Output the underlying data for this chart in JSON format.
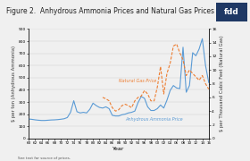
{
  "title": "Figure 2.  Anhydrous Ammonia Prices and Natural Gas Prices",
  "title_fontsize": 5.5,
  "xlabel": "Year",
  "ylabel_left": "$ per ton (Anhydrous Ammonia)",
  "ylabel_right": "$ per Thousand Cubic Feet (Natural Gas)",
  "xlabel_fontsize": 4.5,
  "ylabel_fontsize": 3.8,
  "footnote": "See text for source of prices.",
  "ammonia_color": "#5b9bd5",
  "natural_gas_color": "#ed7d31",
  "ylim_left": [
    0,
    900
  ],
  "ylim_right": [
    0,
    16
  ],
  "yticks_left": [
    0,
    100,
    200,
    300,
    400,
    500,
    600,
    700,
    800,
    900
  ],
  "yticks_right": [
    0,
    2,
    4,
    6,
    8,
    10,
    12,
    14,
    16
  ],
  "fdd_box_color": "#1f3864",
  "fdd_text_color": "#ffffff",
  "bg_color": "#f0f0f0",
  "ammonia_years": [
    1960,
    1961,
    1962,
    1963,
    1964,
    1965,
    1966,
    1967,
    1968,
    1969,
    1970,
    1971,
    1972,
    1973,
    1974,
    1975,
    1976,
    1977,
    1978,
    1979,
    1980,
    1981,
    1982,
    1983,
    1984,
    1985,
    1986,
    1987,
    1988,
    1989,
    1990,
    1991,
    1992,
    1993,
    1994,
    1995,
    1996,
    1997,
    1998,
    1999,
    2000,
    2001,
    2002,
    2003,
    2004,
    2005,
    2006,
    2007,
    2008,
    2009,
    2010,
    2011,
    2012,
    2013,
    2014,
    2015,
    2016
  ],
  "ammonia_vals": [
    160,
    157,
    153,
    150,
    148,
    148,
    150,
    152,
    153,
    155,
    158,
    162,
    172,
    215,
    310,
    220,
    210,
    215,
    210,
    240,
    290,
    270,
    255,
    250,
    260,
    245,
    190,
    185,
    185,
    195,
    200,
    210,
    215,
    225,
    295,
    345,
    330,
    260,
    230,
    230,
    245,
    275,
    250,
    315,
    395,
    435,
    415,
    410,
    750,
    380,
    435,
    705,
    680,
    735,
    820,
    600,
    460
  ],
  "gas_years": [
    1983,
    1984,
    1985,
    1986,
    1987,
    1988,
    1989,
    1990,
    1991,
    1992,
    1993,
    1994,
    1995,
    1996,
    1997,
    1998,
    1999,
    2000,
    2001,
    2002,
    2003,
    2004,
    2005,
    2006,
    2007,
    2008,
    2009,
    2010,
    2011,
    2012,
    2013,
    2014,
    2015,
    2016
  ],
  "gas_vals": [
    6.0,
    5.8,
    5.5,
    4.5,
    4.0,
    4.2,
    4.8,
    5.0,
    4.8,
    4.5,
    5.5,
    6.0,
    6.2,
    7.0,
    6.5,
    5.5,
    5.5,
    7.5,
    10.5,
    6.5,
    9.5,
    11.0,
    13.5,
    13.8,
    12.5,
    11.5,
    9.2,
    10.0,
    9.5,
    9.0,
    8.5,
    9.2,
    8.0,
    7.2
  ],
  "tick_years": [
    1960,
    1962,
    1964,
    1966,
    1968,
    1970,
    1972,
    1974,
    1976,
    1978,
    1980,
    1982,
    1984,
    1986,
    1988,
    1990,
    1992,
    1994,
    1996,
    1998,
    2000,
    2002,
    2004,
    2006,
    2008,
    2010,
    2012,
    2014,
    2016
  ],
  "tick_labels": [
    "60",
    "62",
    "64",
    "66",
    "68",
    "70",
    "72",
    "74",
    "76",
    "78",
    "80",
    "82",
    "84",
    "86",
    "88",
    "90",
    "92",
    "94",
    "96",
    "98",
    "00",
    "02",
    "04",
    "06",
    "08",
    "10",
    "12",
    "14",
    "16"
  ]
}
